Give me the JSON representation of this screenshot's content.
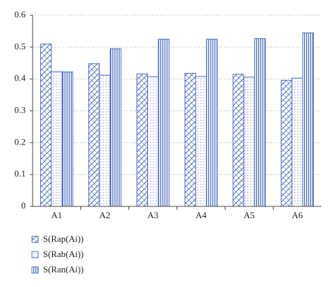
{
  "chart_data": {
    "type": "bar",
    "categories": [
      "A1",
      "A2",
      "A3",
      "A4",
      "A5",
      "A6"
    ],
    "series": [
      {
        "name": "S(Rap(Ai))",
        "color": "#4a6cc4",
        "pattern": "hatch",
        "values": [
          0.51,
          0.448,
          0.416,
          0.418,
          0.415,
          0.396
        ]
      },
      {
        "name": "S(Rab(Ai))",
        "color": "#4a6cc4",
        "pattern": "dots",
        "values": [
          0.423,
          0.412,
          0.407,
          0.408,
          0.406,
          0.403
        ]
      },
      {
        "name": "S(Ran(Ai))",
        "color": "#4a6cc4",
        "pattern": "vlines",
        "values": [
          0.422,
          0.495,
          0.525,
          0.525,
          0.527,
          0.545
        ]
      }
    ],
    "ylim": [
      0,
      0.6
    ],
    "yticks": [
      0,
      0.1,
      0.2,
      0.3,
      0.4,
      0.5,
      0.6
    ],
    "grid": true,
    "legend": "bottom"
  }
}
